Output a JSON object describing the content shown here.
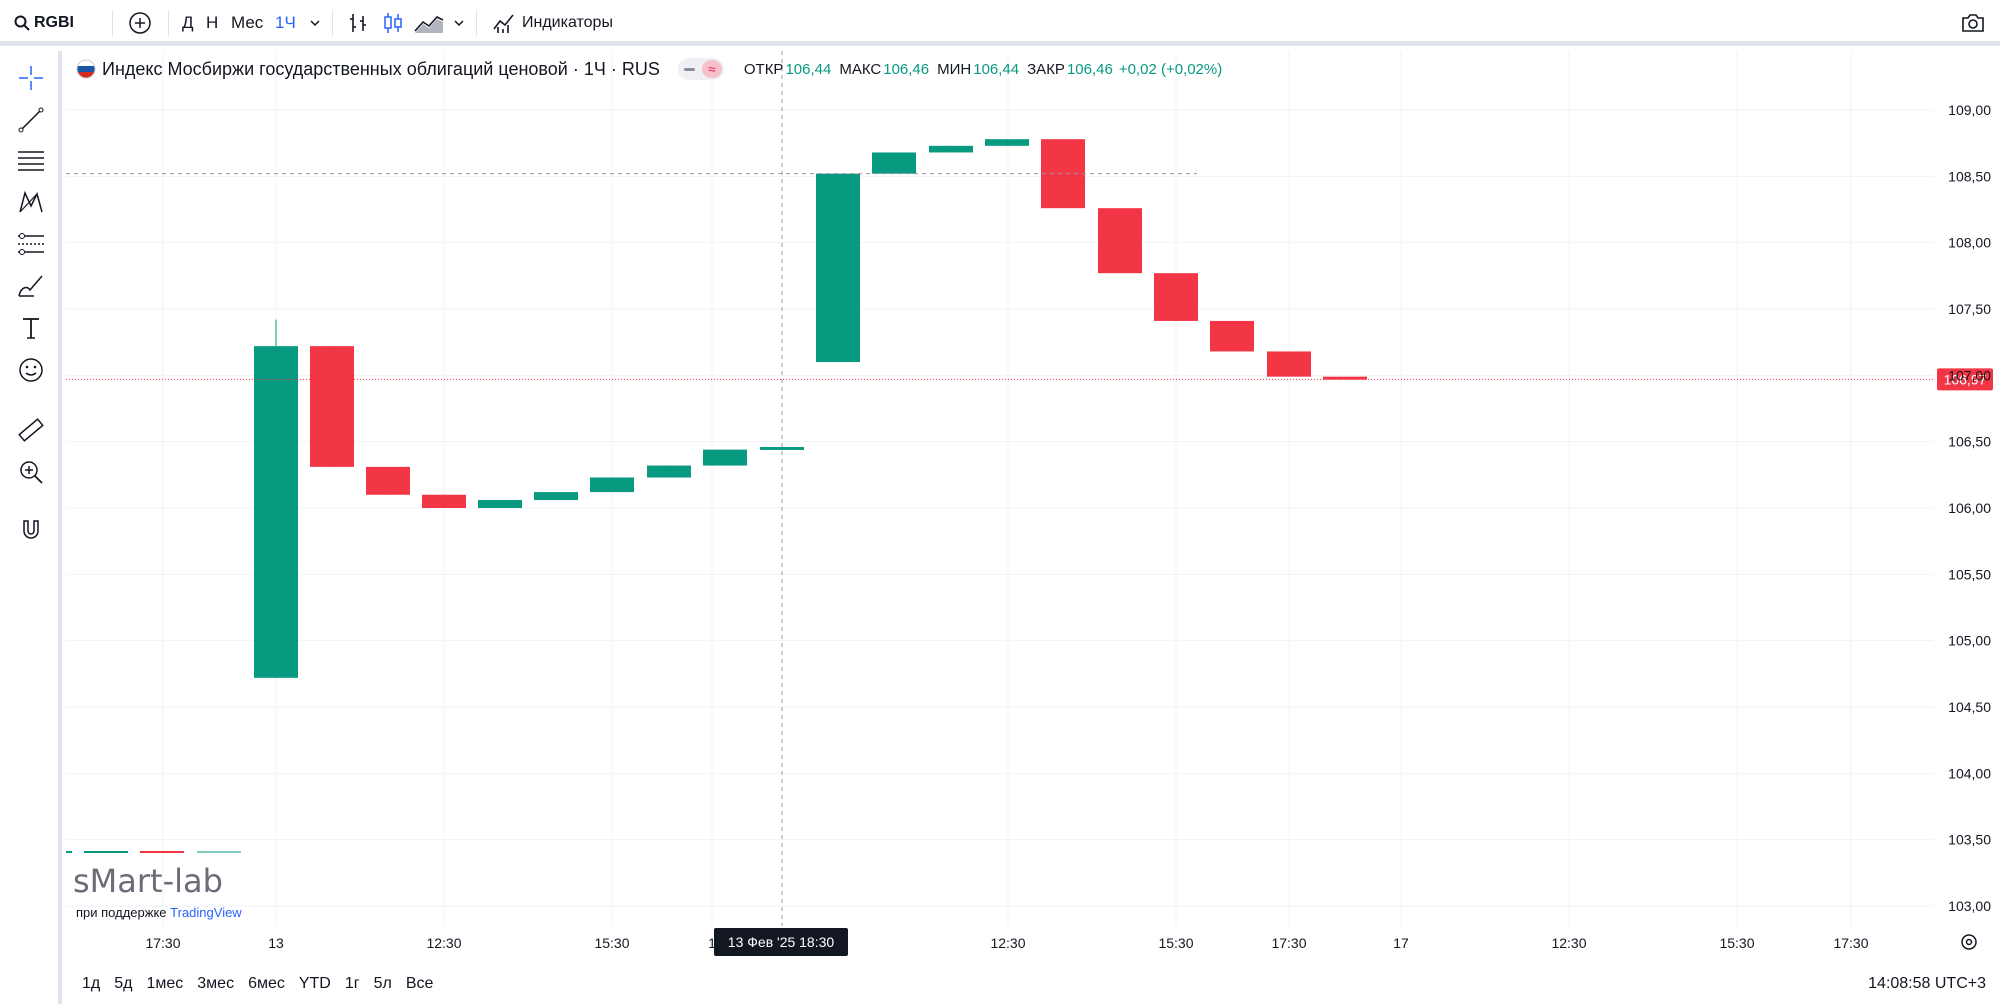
{
  "toolbar": {
    "symbol": "RGBI",
    "intervals": [
      "Д",
      "Н",
      "Мес",
      "1Ч"
    ],
    "active_interval": "1Ч",
    "indicators_label": "Индикаторы"
  },
  "legend": {
    "title": "Индекс Мосбиржи государственных облигаций ценовой · 1Ч · RUS",
    "open_label": "ОТКР",
    "open_value": "106,44",
    "high_label": "МАКС",
    "high_value": "106,46",
    "low_label": "МИН",
    "low_value": "106,44",
    "close_label": "ЗАКР",
    "close_value": "106,46",
    "change": "+0,02 (+0,02%)"
  },
  "colors": {
    "up": "#089981",
    "down": "#f23645",
    "accent": "#2962ff"
  },
  "watermark": {
    "brand": "sMart-lab",
    "support_prefix": "при поддержке",
    "support_brand": "TradingView"
  },
  "chart_data": {
    "type": "candlestick",
    "title": "Индекс Мосбиржи государственных облигаций ценовой · 1Ч · RUS",
    "ylim": [
      102.9,
      109.35
    ],
    "yticks": [
      "109,00",
      "108,50",
      "108,00",
      "107,50",
      "107,00",
      "106,50",
      "106,00",
      "105,50",
      "105,00",
      "104,50",
      "104,00",
      "103,50",
      "103,00"
    ],
    "ytick_values": [
      109.0,
      108.5,
      108.0,
      107.5,
      107.0,
      106.5,
      106.0,
      105.5,
      105.0,
      104.5,
      104.0,
      103.5,
      103.0
    ],
    "xticks": [
      "17:30",
      "13",
      "12:30",
      "15:30",
      "1",
      "12:30",
      "15:30",
      "17:30",
      "17",
      "12:30",
      "15:30",
      "17:30"
    ],
    "crosshair_label": "13 Фев '25   18:30",
    "last_price_label": "106,97",
    "last_price": 106.97,
    "candles": [
      {
        "o": 104.72,
        "h": 107.42,
        "l": 104.72,
        "c": 107.22
      },
      {
        "o": 107.22,
        "h": 107.22,
        "l": 106.31,
        "c": 106.31
      },
      {
        "o": 106.31,
        "h": 106.31,
        "l": 106.1,
        "c": 106.1
      },
      {
        "o": 106.1,
        "h": 106.1,
        "l": 106.0,
        "c": 106.0
      },
      {
        "o": 106.0,
        "h": 106.06,
        "l": 106.0,
        "c": 106.06
      },
      {
        "o": 106.06,
        "h": 106.12,
        "l": 106.06,
        "c": 106.12
      },
      {
        "o": 106.12,
        "h": 106.23,
        "l": 106.12,
        "c": 106.23
      },
      {
        "o": 106.23,
        "h": 106.32,
        "l": 106.23,
        "c": 106.32
      },
      {
        "o": 106.32,
        "h": 106.44,
        "l": 106.32,
        "c": 106.44
      },
      {
        "o": 106.44,
        "h": 106.46,
        "l": 106.44,
        "c": 106.46
      },
      {
        "o": 107.1,
        "h": 108.52,
        "l": 107.1,
        "c": 108.52
      },
      {
        "o": 108.52,
        "h": 108.68,
        "l": 108.52,
        "c": 108.68
      },
      {
        "o": 108.68,
        "h": 108.73,
        "l": 108.68,
        "c": 108.73
      },
      {
        "o": 108.73,
        "h": 108.78,
        "l": 108.73,
        "c": 108.78
      },
      {
        "o": 108.78,
        "h": 108.78,
        "l": 108.26,
        "c": 108.26
      },
      {
        "o": 108.26,
        "h": 108.26,
        "l": 107.77,
        "c": 107.77
      },
      {
        "o": 107.77,
        "h": 107.77,
        "l": 107.41,
        "c": 107.41
      },
      {
        "o": 107.41,
        "h": 107.41,
        "l": 107.18,
        "c": 107.18
      },
      {
        "o": 107.18,
        "h": 107.18,
        "l": 106.99,
        "c": 106.99
      },
      {
        "o": 106.99,
        "h": 106.99,
        "l": 106.97,
        "c": 106.97
      }
    ]
  },
  "bottombar": {
    "ranges": [
      "1д",
      "5д",
      "1мес",
      "3мес",
      "6мес",
      "YTD",
      "1г",
      "5л",
      "Все"
    ],
    "clock": "14:08:58 UTC+3"
  }
}
